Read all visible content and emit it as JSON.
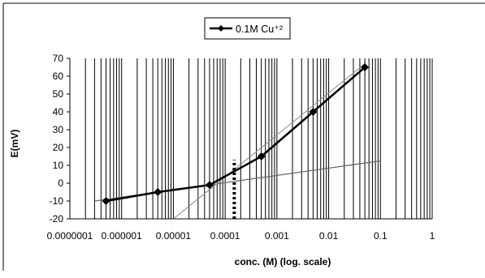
{
  "chart_data": {
    "type": "line",
    "title": "",
    "xlabel": "conc. (M) (log. scale)",
    "ylabel": "E(mV)",
    "x_scale": "log",
    "xlim": [
      1e-07,
      1
    ],
    "ylim": [
      -20,
      70
    ],
    "x_tick_labels": [
      "0.0000001",
      "0.000001",
      "0.00001",
      "0.0001",
      "0.001",
      "0.01",
      "0.1",
      "1"
    ],
    "y_ticks": [
      -20,
      -10,
      0,
      10,
      20,
      30,
      40,
      50,
      60,
      70
    ],
    "grid": "vertical minor and major (log)",
    "legend_position": "top-center",
    "series": [
      {
        "name": "0.1M Cu⁺²",
        "color": "#000000",
        "marker": "diamond",
        "x": [
          5e-07,
          5e-06,
          5e-05,
          0.0005,
          0.005,
          0.05
        ],
        "y": [
          -10,
          -5,
          -1,
          15,
          40,
          65
        ]
      }
    ],
    "annotations": {
      "fit_line_low": {
        "x": [
          3e-07,
          0.1
        ],
        "y": [
          -10,
          12.5
        ],
        "color": "#666666"
      },
      "fit_line_high": {
        "x": [
          1e-05,
          0.05
        ],
        "y": [
          -20,
          67
        ],
        "color": "#888888"
      },
      "detection_limit_marker": {
        "x": 0.00015,
        "y_range": [
          -20,
          13
        ],
        "style": "dotted"
      }
    }
  }
}
